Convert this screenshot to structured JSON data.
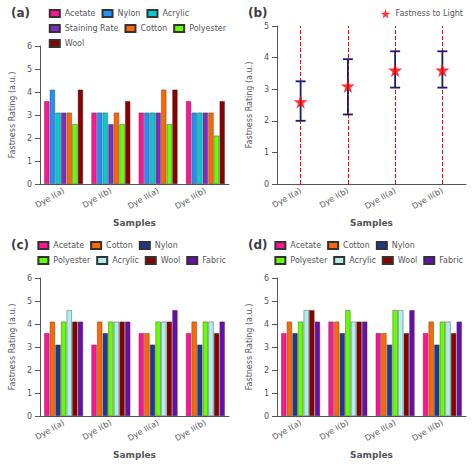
{
  "chart_data": [
    {
      "type": "bar",
      "title": "(a)",
      "xlabel": "Samples",
      "ylabel": "Fastness Rating (a.u.)",
      "categories": [
        "Dye I(a)",
        "Dye I(b)",
        "Dye II(a)",
        "Dye II(b)"
      ],
      "series": [
        {
          "name": "Acetate",
          "color": "#FF1493",
          "values": [
            3.6,
            3.1,
            3.1,
            3.6
          ]
        },
        {
          "name": "Nylon",
          "color": "#1E90FF",
          "values": [
            4.1,
            3.1,
            3.1,
            3.1
          ]
        },
        {
          "name": "Acrylic",
          "color": "#00CED1",
          "values": [
            3.1,
            3.1,
            3.1,
            3.1
          ]
        },
        {
          "name": "Staining Rate",
          "color": "#7B2FBE",
          "values": [
            3.1,
            2.6,
            3.1,
            3.1
          ]
        },
        {
          "name": "Cotton",
          "color": "#FF6600",
          "values": [
            3.1,
            3.1,
            4.1,
            3.1
          ]
        },
        {
          "name": "Polyester",
          "color": "#66FF00",
          "values": [
            2.6,
            2.6,
            2.6,
            2.1
          ]
        },
        {
          "name": "Wool",
          "color": "#8B0000",
          "values": [
            4.1,
            3.6,
            4.1,
            3.6
          ]
        }
      ],
      "ylim": [
        0,
        6
      ],
      "yticks": [
        0,
        1,
        2,
        3,
        4,
        5,
        6
      ],
      "grid": false,
      "legend": "upper right"
    },
    {
      "type": "scatter",
      "title": "(b)",
      "xlabel": "Samples",
      "ylabel": "Fastness Rating (a.u.)",
      "categories": [
        "Dye I(a)",
        "Dye I(b)",
        "Dye II(a)",
        "Dye II(b)"
      ],
      "series": [
        {
          "name": "Fastness to Light",
          "color": "red",
          "marker": "star",
          "values": [
            2.6,
            3.1,
            3.6,
            3.6
          ],
          "error_low": [
            0.6,
            0.9,
            0.55,
            0.55
          ],
          "error_high": [
            0.65,
            0.85,
            0.6,
            0.6
          ]
        }
      ],
      "ylim": [
        0,
        5
      ],
      "yticks": [
        0,
        1,
        2,
        3,
        4,
        5
      ],
      "grid": false,
      "legend": "upper right"
    },
    {
      "type": "bar",
      "title": "(c)",
      "xlabel": "Samples",
      "ylabel": "Fastness Rating (a.u.)",
      "categories": [
        "Dye I(a)",
        "Dye I(b)",
        "Dye II(a)",
        "Dye II(b)"
      ],
      "series": [
        {
          "name": "Acetate",
          "color": "#FF1493",
          "values": [
            3.6,
            3.1,
            3.6,
            3.6
          ]
        },
        {
          "name": "Cotton",
          "color": "#FF6600",
          "values": [
            4.1,
            4.1,
            3.6,
            4.1
          ]
        },
        {
          "name": "Nylon",
          "color": "#1E3A8A",
          "values": [
            3.1,
            3.6,
            3.1,
            3.1
          ]
        },
        {
          "name": "Polyester",
          "color": "#66FF00",
          "values": [
            4.1,
            4.1,
            4.1,
            4.1
          ]
        },
        {
          "name": "Acrylic",
          "color": "#AFEEEE",
          "values": [
            4.6,
            4.1,
            4.1,
            4.1
          ]
        },
        {
          "name": "Wool",
          "color": "#8B0000",
          "values": [
            4.1,
            4.1,
            4.1,
            3.6
          ]
        },
        {
          "name": "Fabric",
          "color": "#6A0DAD",
          "values": [
            4.1,
            4.1,
            4.6,
            4.1
          ]
        }
      ],
      "ylim": [
        0,
        6
      ],
      "yticks": [
        0,
        1,
        2,
        3,
        4,
        5,
        6
      ],
      "grid": false,
      "legend": "upper right"
    },
    {
      "type": "bar",
      "title": "(d)",
      "xlabel": "Samples",
      "ylabel": "Fastness Rating (a.u.)",
      "categories": [
        "Dye I(a)",
        "Dye I(b)",
        "Dye II(a)",
        "Dye II(b)"
      ],
      "series": [
        {
          "name": "Acetate",
          "color": "#FF1493",
          "values": [
            3.6,
            4.1,
            3.6,
            3.6
          ]
        },
        {
          "name": "Cotton",
          "color": "#FF6600",
          "values": [
            4.1,
            4.1,
            3.6,
            4.1
          ]
        },
        {
          "name": "Nylon",
          "color": "#1E3A8A",
          "values": [
            3.6,
            3.6,
            3.1,
            3.1
          ]
        },
        {
          "name": "Polyester",
          "color": "#66FF00",
          "values": [
            4.1,
            4.6,
            4.6,
            4.1
          ]
        },
        {
          "name": "Acrylic",
          "color": "#AFEEEE",
          "values": [
            4.6,
            4.1,
            4.6,
            4.1
          ]
        },
        {
          "name": "Wool",
          "color": "#8B0000",
          "values": [
            4.6,
            4.1,
            3.6,
            3.6
          ]
        },
        {
          "name": "Fabric",
          "color": "#6A0DAD",
          "values": [
            4.1,
            4.1,
            4.6,
            4.1
          ]
        }
      ],
      "ylim": [
        0,
        6
      ],
      "yticks": [
        0,
        1,
        2,
        3,
        4,
        5,
        6
      ],
      "grid": false,
      "legend": "upper right"
    }
  ]
}
